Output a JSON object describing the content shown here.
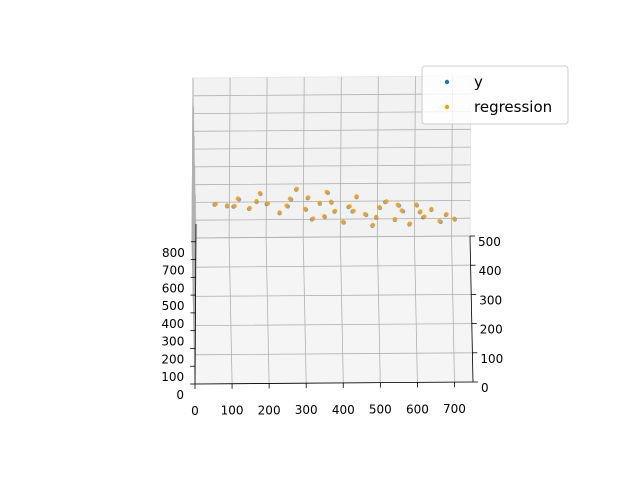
{
  "chart_data": {
    "type": "scatter",
    "projection": "3d",
    "title": "",
    "xlabel": "",
    "ylabel": "",
    "zlabel": "",
    "grid": true,
    "legend_position": "top-right",
    "xlim": [
      0,
      750
    ],
    "ylim": [
      0,
      500
    ],
    "zlim": [
      0,
      900
    ],
    "x_ticks": [
      "0",
      "100",
      "200",
      "300",
      "400",
      "500",
      "600",
      "700"
    ],
    "y_ticks": [
      "0",
      "100",
      "200",
      "300",
      "400",
      "500"
    ],
    "z_ticks": [
      "0",
      "100",
      "200",
      "300",
      "400",
      "500",
      "600",
      "700",
      "800"
    ],
    "series": [
      {
        "name": "y",
        "color": "#1f77b4"
      },
      {
        "name": "regression",
        "color": "#ff9f0a"
      }
    ],
    "points": [
      {
        "x": 60,
        "y": 330,
        "z": 470
      },
      {
        "x": 90,
        "y": 300,
        "z": 510
      },
      {
        "x": 120,
        "y": 360,
        "z": 450
      },
      {
        "x": 150,
        "y": 260,
        "z": 560
      },
      {
        "x": 180,
        "y": 390,
        "z": 430
      },
      {
        "x": 200,
        "y": 300,
        "z": 520
      },
      {
        "x": 230,
        "y": 220,
        "z": 600
      },
      {
        "x": 260,
        "y": 340,
        "z": 480
      },
      {
        "x": 280,
        "y": 410,
        "z": 420
      },
      {
        "x": 300,
        "y": 250,
        "z": 570
      },
      {
        "x": 320,
        "y": 180,
        "z": 630
      },
      {
        "x": 340,
        "y": 300,
        "z": 520
      },
      {
        "x": 360,
        "y": 380,
        "z": 450
      },
      {
        "x": 380,
        "y": 230,
        "z": 590
      },
      {
        "x": 400,
        "y": 150,
        "z": 660
      },
      {
        "x": 420,
        "y": 270,
        "z": 550
      },
      {
        "x": 440,
        "y": 340,
        "z": 490
      },
      {
        "x": 460,
        "y": 200,
        "z": 620
      },
      {
        "x": 480,
        "y": 120,
        "z": 690
      },
      {
        "x": 500,
        "y": 260,
        "z": 560
      },
      {
        "x": 520,
        "y": 310,
        "z": 510
      },
      {
        "x": 540,
        "y": 170,
        "z": 640
      },
      {
        "x": 560,
        "y": 230,
        "z": 590
      },
      {
        "x": 580,
        "y": 130,
        "z": 680
      },
      {
        "x": 600,
        "y": 280,
        "z": 540
      },
      {
        "x": 620,
        "y": 190,
        "z": 620
      },
      {
        "x": 640,
        "y": 240,
        "z": 580
      },
      {
        "x": 660,
        "y": 150,
        "z": 660
      },
      {
        "x": 680,
        "y": 210,
        "z": 600
      },
      {
        "x": 700,
        "y": 170,
        "z": 640
      },
      {
        "x": 110,
        "y": 280,
        "z": 540
      },
      {
        "x": 170,
        "y": 320,
        "z": 500
      },
      {
        "x": 250,
        "y": 280,
        "z": 540
      },
      {
        "x": 310,
        "y": 350,
        "z": 470
      },
      {
        "x": 370,
        "y": 310,
        "z": 510
      },
      {
        "x": 430,
        "y": 230,
        "z": 590
      },
      {
        "x": 490,
        "y": 190,
        "z": 620
      },
      {
        "x": 550,
        "y": 280,
        "z": 540
      },
      {
        "x": 610,
        "y": 220,
        "z": 600
      },
      {
        "x": 350,
        "y": 200,
        "z": 610
      }
    ]
  }
}
